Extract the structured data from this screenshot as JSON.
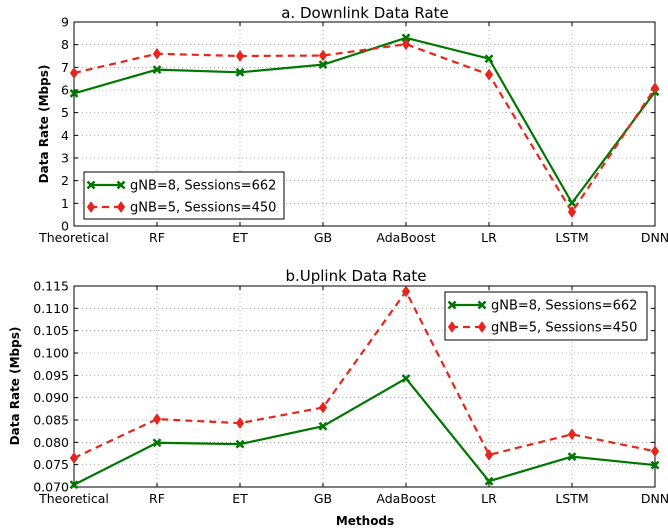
{
  "chart_data": [
    {
      "type": "line",
      "title": "a. Downlink Data Rate",
      "xlabel": "",
      "ylabel": "Data Rate (Mbps)",
      "categories": [
        "Theoretical",
        "RF",
        "ET",
        "GB",
        "AdaBoost",
        "LR",
        "LSTM",
        "DNN"
      ],
      "ylim": [
        0,
        9
      ],
      "yticks": [
        "0",
        "1",
        "2",
        "3",
        "4",
        "5",
        "6",
        "7",
        "8",
        "9"
      ],
      "grid": true,
      "legend_position": "lower-left",
      "series": [
        {
          "name": "gNB=8, Sessions=662",
          "color": "#007700",
          "style": "solid",
          "marker": "x",
          "values": [
            5.85,
            6.9,
            6.78,
            7.12,
            8.3,
            7.38,
            1.02,
            5.92
          ]
        },
        {
          "name": "gNB=5, Sessions=450",
          "color": "#e8251c",
          "style": "dashed",
          "marker": "diamond",
          "values": [
            6.75,
            7.6,
            7.5,
            7.52,
            8.02,
            6.68,
            0.62,
            6.08
          ]
        }
      ]
    },
    {
      "type": "line",
      "title": "b.Uplink Data Rate",
      "xlabel": "Methods",
      "ylabel": "Data Rate (Mbps)",
      "categories": [
        "Theoretical",
        "RF",
        "ET",
        "GB",
        "AdaBoost",
        "LR",
        "LSTM",
        "DNN"
      ],
      "ylim": [
        0.07,
        0.115
      ],
      "yticks": [
        "0.070",
        "0.075",
        "0.080",
        "0.085",
        "0.090",
        "0.095",
        "0.100",
        "0.105",
        "0.110",
        "0.115"
      ],
      "grid": true,
      "legend_position": "upper-right",
      "series": [
        {
          "name": "gNB=8, Sessions=662",
          "color": "#007700",
          "style": "solid",
          "marker": "x",
          "values": [
            0.0705,
            0.0799,
            0.0796,
            0.0836,
            0.0943,
            0.0713,
            0.0768,
            0.0749
          ]
        },
        {
          "name": "gNB=5, Sessions=450",
          "color": "#e8251c",
          "style": "dashed",
          "marker": "diamond",
          "values": [
            0.0765,
            0.0852,
            0.0843,
            0.0878,
            0.1138,
            0.0772,
            0.0818,
            0.078
          ]
        }
      ]
    }
  ]
}
